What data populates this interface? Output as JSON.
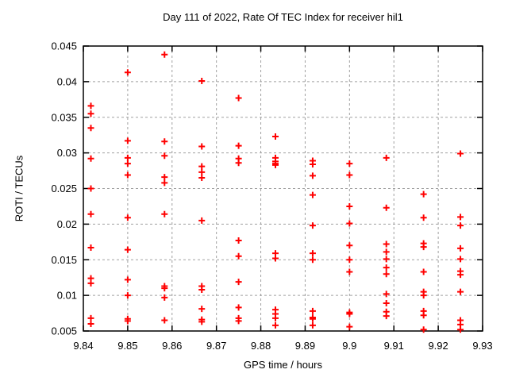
{
  "window": {
    "background": "#ffffff"
  },
  "chart_data": {
    "type": "scatter",
    "title": "Day 111 of 2022, Rate Of TEC Index for receiver hil1",
    "xlabel": "GPS time / hours",
    "ylabel": "ROTI / TECUs",
    "xlim": [
      9.84,
      9.93
    ],
    "ylim": [
      0.005,
      0.045
    ],
    "x_ticks": [
      9.84,
      9.85,
      9.86,
      9.87,
      9.88,
      9.89,
      9.9,
      9.91,
      9.92,
      9.93
    ],
    "x_tick_labels": [
      "9.84",
      "9.85",
      "9.86",
      "9.87",
      "9.88",
      "9.89",
      "9.9",
      "9.91",
      "9.92",
      "9.93"
    ],
    "y_ticks": [
      0.005,
      0.01,
      0.015,
      0.02,
      0.025,
      0.03,
      0.035,
      0.04,
      0.045
    ],
    "y_tick_labels": [
      "0.005",
      "0.01",
      "0.015",
      "0.02",
      "0.025",
      "0.03",
      "0.035",
      "0.04",
      "0.045"
    ],
    "grid": true,
    "legend": "none",
    "marker": "plus",
    "colors": {
      "marker": "#ff0000",
      "grid": "#a0a0a0",
      "border": "#000000",
      "text": "#000000"
    },
    "series": [
      {
        "name": "ROTI",
        "points": [
          [
            9.8417,
            0.0366
          ],
          [
            9.8417,
            0.0355
          ],
          [
            9.8417,
            0.0335
          ],
          [
            9.8417,
            0.0292
          ],
          [
            9.8417,
            0.025
          ],
          [
            9.8417,
            0.0214
          ],
          [
            9.8417,
            0.0167
          ],
          [
            9.8417,
            0.0124
          ],
          [
            9.8417,
            0.0117
          ],
          [
            9.8417,
            0.0068
          ],
          [
            9.8417,
            0.006
          ],
          [
            9.85,
            0.0413
          ],
          [
            9.85,
            0.0317
          ],
          [
            9.85,
            0.0293
          ],
          [
            9.85,
            0.0285
          ],
          [
            9.85,
            0.0269
          ],
          [
            9.85,
            0.0209
          ],
          [
            9.85,
            0.0164
          ],
          [
            9.85,
            0.0122
          ],
          [
            9.85,
            0.01
          ],
          [
            9.85,
            0.0067
          ],
          [
            9.85,
            0.0064
          ],
          [
            9.8583,
            0.0438
          ],
          [
            9.8583,
            0.0316
          ],
          [
            9.8583,
            0.0296
          ],
          [
            9.8583,
            0.0266
          ],
          [
            9.8583,
            0.0258
          ],
          [
            9.8583,
            0.0214
          ],
          [
            9.8583,
            0.0113
          ],
          [
            9.8583,
            0.011
          ],
          [
            9.8583,
            0.0097
          ],
          [
            9.8583,
            0.0065
          ],
          [
            9.8667,
            0.0401
          ],
          [
            9.8667,
            0.0309
          ],
          [
            9.8667,
            0.0281
          ],
          [
            9.8667,
            0.0273
          ],
          [
            9.8667,
            0.0265
          ],
          [
            9.8667,
            0.0205
          ],
          [
            9.8667,
            0.0113
          ],
          [
            9.8667,
            0.0108
          ],
          [
            9.8667,
            0.0081
          ],
          [
            9.8667,
            0.0066
          ],
          [
            9.8667,
            0.0063
          ],
          [
            9.875,
            0.0377
          ],
          [
            9.875,
            0.031
          ],
          [
            9.875,
            0.0292
          ],
          [
            9.875,
            0.0286
          ],
          [
            9.875,
            0.0177
          ],
          [
            9.875,
            0.0155
          ],
          [
            9.875,
            0.0119
          ],
          [
            9.875,
            0.0083
          ],
          [
            9.875,
            0.0068
          ],
          [
            9.875,
            0.0064
          ],
          [
            9.8833,
            0.0323
          ],
          [
            9.8833,
            0.0293
          ],
          [
            9.8833,
            0.0288
          ],
          [
            9.8833,
            0.0285
          ],
          [
            9.8833,
            0.0283
          ],
          [
            9.8833,
            0.0159
          ],
          [
            9.8833,
            0.0152
          ],
          [
            9.8833,
            0.008
          ],
          [
            9.8833,
            0.0074
          ],
          [
            9.8833,
            0.0068
          ],
          [
            9.8833,
            0.0058
          ],
          [
            9.8917,
            0.0289
          ],
          [
            9.8917,
            0.0284
          ],
          [
            9.8917,
            0.0268
          ],
          [
            9.8917,
            0.0241
          ],
          [
            9.8917,
            0.0198
          ],
          [
            9.8917,
            0.0159
          ],
          [
            9.8917,
            0.015
          ],
          [
            9.8917,
            0.0078
          ],
          [
            9.8917,
            0.0069
          ],
          [
            9.8917,
            0.0067
          ],
          [
            9.8917,
            0.0058
          ],
          [
            9.9,
            0.0285
          ],
          [
            9.9,
            0.0269
          ],
          [
            9.9,
            0.0225
          ],
          [
            9.9,
            0.0201
          ],
          [
            9.9,
            0.017
          ],
          [
            9.9,
            0.015
          ],
          [
            9.9,
            0.0133
          ],
          [
            9.9,
            0.0076
          ],
          [
            9.9,
            0.0074
          ],
          [
            9.9,
            0.0056
          ],
          [
            9.9083,
            0.0293
          ],
          [
            9.9083,
            0.0223
          ],
          [
            9.9083,
            0.0172
          ],
          [
            9.9083,
            0.0161
          ],
          [
            9.9083,
            0.0151
          ],
          [
            9.9083,
            0.0139
          ],
          [
            9.9083,
            0.013
          ],
          [
            9.9083,
            0.0102
          ],
          [
            9.9083,
            0.0089
          ],
          [
            9.9083,
            0.0077
          ],
          [
            9.9083,
            0.0071
          ],
          [
            9.9167,
            0.0242
          ],
          [
            9.9167,
            0.0209
          ],
          [
            9.9167,
            0.0173
          ],
          [
            9.9167,
            0.0168
          ],
          [
            9.9167,
            0.0133
          ],
          [
            9.9167,
            0.0105
          ],
          [
            9.9167,
            0.01
          ],
          [
            9.9167,
            0.0078
          ],
          [
            9.9167,
            0.0072
          ],
          [
            9.9167,
            0.0052
          ],
          [
            9.925,
            0.0299
          ],
          [
            9.925,
            0.021
          ],
          [
            9.925,
            0.0198
          ],
          [
            9.925,
            0.0166
          ],
          [
            9.925,
            0.0151
          ],
          [
            9.925,
            0.0134
          ],
          [
            9.925,
            0.0129
          ],
          [
            9.925,
            0.0105
          ],
          [
            9.925,
            0.0065
          ],
          [
            9.925,
            0.0059
          ],
          [
            9.925,
            0.0052
          ]
        ]
      }
    ]
  }
}
